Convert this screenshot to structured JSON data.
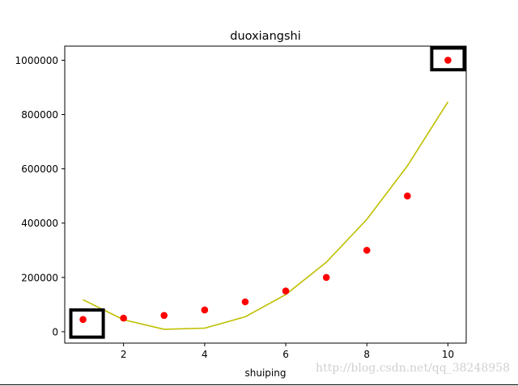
{
  "chart_data": {
    "type": "scatter",
    "title": "duoxiangshi",
    "xlabel": "shuiping",
    "ylabel": "",
    "xlim": [
      0.55,
      10.45
    ],
    "ylim": [
      -42000,
      1052000
    ],
    "x_ticks": [
      2,
      4,
      6,
      8,
      10
    ],
    "x_tick_labels": [
      "2",
      "4",
      "6",
      "8",
      "10"
    ],
    "y_ticks": [
      0,
      200000,
      400000,
      600000,
      800000,
      1000000
    ],
    "y_tick_labels": [
      "0",
      "200000",
      "400000",
      "600000",
      "800000",
      "1000000"
    ],
    "grid": false,
    "series": [
      {
        "kind": "points",
        "color": "#ff0000",
        "x": [
          1,
          2,
          3,
          4,
          5,
          6,
          7,
          8,
          9,
          10
        ],
        "y": [
          45000,
          50000,
          60000,
          80000,
          110000,
          150000,
          200000,
          300000,
          500000,
          1000000
        ]
      },
      {
        "kind": "line",
        "color": "#bfbf00",
        "x": [
          1,
          2,
          3,
          4,
          5,
          6,
          7,
          8,
          9,
          10
        ],
        "y": [
          118000,
          44000,
          9000,
          13000,
          55000,
          137000,
          256000,
          414000,
          611000,
          847000
        ]
      }
    ],
    "highlight_boxes": [
      {
        "x_range": [
          0.7,
          1.5
        ],
        "y_range": [
          -20000,
          80000
        ],
        "color": "#000000"
      },
      {
        "x_range": [
          9.6,
          10.4
        ],
        "y_range": [
          965000,
          1045000
        ],
        "color": "#000000"
      }
    ]
  },
  "watermark": "http://blog.csdn.net/qq_38248958"
}
